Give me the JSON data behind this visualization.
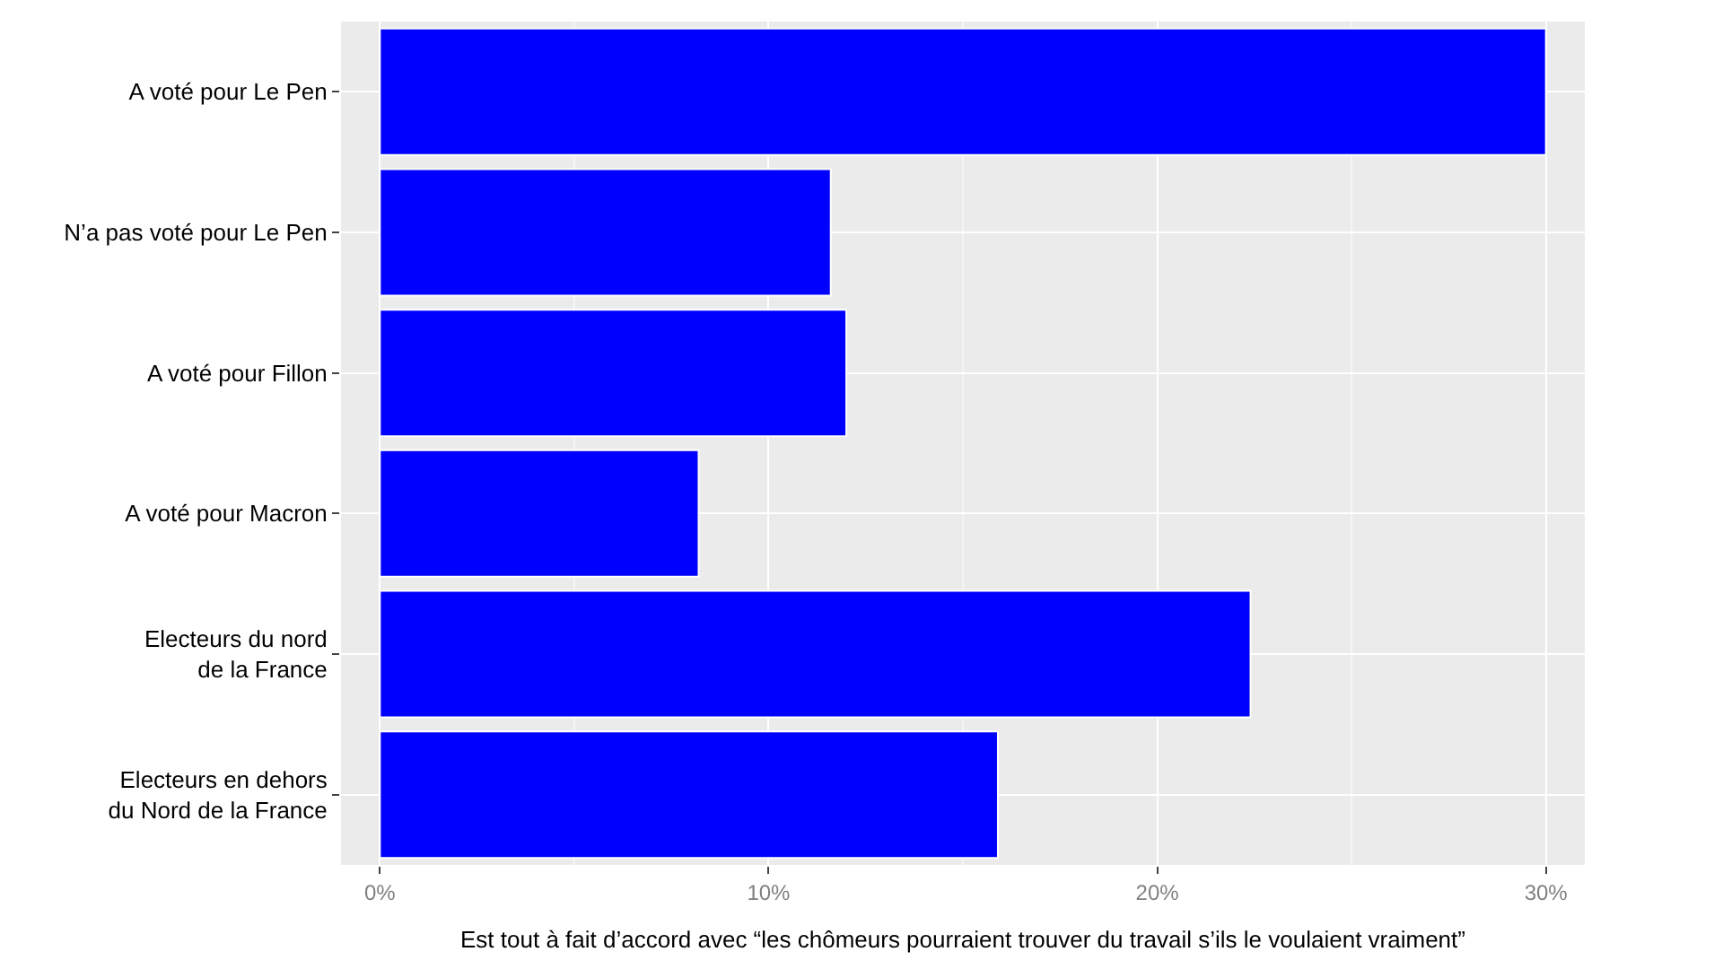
{
  "chart_data": {
    "type": "bar",
    "orientation": "horizontal",
    "categories": [
      "A voté pour Le Pen",
      "N’a pas voté pour Le Pen",
      "A voté pour Fillon",
      "A voté pour Macron",
      "Electeurs du nord\nde la France",
      "Electeurs en dehors\ndu Nord de la France"
    ],
    "values": [
      30.0,
      11.6,
      12.0,
      8.2,
      22.4,
      15.9
    ],
    "color": "#0000ff",
    "xlabel": "Est tout à fait d’accord avec “les chômeurs pourraient trouver du travail s’ils le voulaient vraiment”",
    "xlim": [
      -1,
      31
    ],
    "xticks": [
      {
        "value": 0,
        "label": "0%"
      },
      {
        "value": 10,
        "label": "10%"
      },
      {
        "value": 20,
        "label": "20%"
      },
      {
        "value": 30,
        "label": "30%"
      }
    ],
    "grid": true,
    "legend": false
  }
}
